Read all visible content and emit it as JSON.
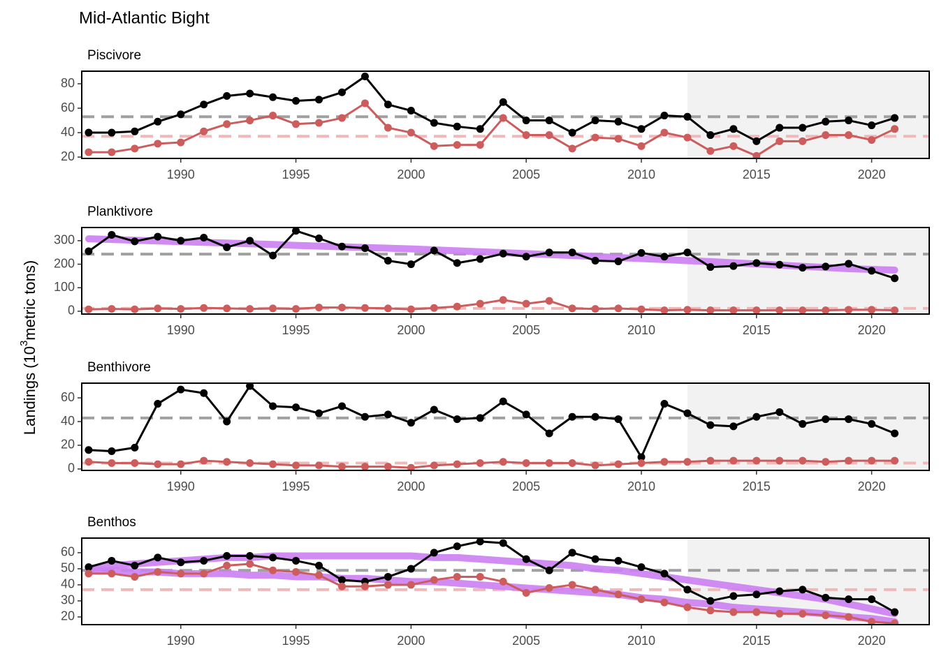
{
  "title": "Mid-Atlantic Bight",
  "ylabel": [
    "Landings (10",
    "3",
    "metric tons)"
  ],
  "chart_data": [
    {
      "type": "line",
      "title": "Piscivore",
      "x": [
        1986,
        1987,
        1988,
        1989,
        1990,
        1991,
        1992,
        1993,
        1994,
        1995,
        1996,
        1997,
        1998,
        1999,
        2000,
        2001,
        2002,
        2003,
        2004,
        2005,
        2006,
        2007,
        2008,
        2009,
        2010,
        2011,
        2012,
        2013,
        2014,
        2015,
        2016,
        2017,
        2018,
        2019,
        2020,
        2021
      ],
      "series": [
        {
          "color": "#000000",
          "markers": true,
          "values": [
            40,
            40,
            41,
            49,
            55,
            63,
            70,
            72,
            69,
            66,
            67,
            73,
            86,
            63,
            58,
            48,
            45,
            43,
            65,
            50,
            50,
            40,
            50,
            49,
            43,
            54,
            53,
            38,
            43,
            33,
            44,
            44,
            49,
            50,
            46,
            52
          ]
        },
        {
          "color": "#cd5c5c",
          "markers": true,
          "values": [
            24,
            24,
            27,
            31,
            32,
            41,
            47,
            50,
            54,
            47,
            48,
            52,
            64,
            44,
            40,
            29,
            30,
            30,
            52,
            38,
            38,
            27,
            36,
            35,
            29,
            40,
            36,
            25,
            29,
            21,
            33,
            33,
            38,
            38,
            34,
            43
          ]
        }
      ],
      "hlines": [
        {
          "value": 53,
          "color": "#a0a0a0"
        },
        {
          "value": 37,
          "color": "#f0b8b8"
        }
      ],
      "shade_from": 2012,
      "xlim": [
        1985.7,
        2022.5
      ],
      "xticks": [
        1990,
        1995,
        2000,
        2005,
        2010,
        2015,
        2020
      ],
      "ylim": [
        18.9,
        90.3
      ],
      "yticks": [
        20,
        40,
        60,
        80
      ]
    },
    {
      "type": "line",
      "title": "Planktivore",
      "x": [
        1986,
        1987,
        1988,
        1989,
        1990,
        1991,
        1992,
        1993,
        1994,
        1995,
        1996,
        1997,
        1998,
        1999,
        2000,
        2001,
        2002,
        2003,
        2004,
        2005,
        2006,
        2007,
        2008,
        2009,
        2010,
        2011,
        2012,
        2013,
        2014,
        2015,
        2016,
        2017,
        2018,
        2019,
        2020,
        2021
      ],
      "series": [
        {
          "color": "#cc80f2",
          "markers": false,
          "values": [
            308,
            305,
            302,
            299,
            296,
            293,
            290,
            287,
            284,
            280,
            277,
            274,
            271,
            268,
            265,
            261,
            257,
            253,
            249,
            245,
            241,
            237,
            233,
            228,
            224,
            220,
            215,
            211,
            206,
            201,
            196,
            191,
            186,
            181,
            178,
            175
          ]
        },
        {
          "color": "#000000",
          "markers": true,
          "values": [
            255,
            325,
            297,
            317,
            300,
            313,
            272,
            300,
            237,
            342,
            310,
            275,
            268,
            215,
            200,
            258,
            205,
            222,
            245,
            232,
            250,
            250,
            215,
            212,
            248,
            232,
            250,
            188,
            192,
            205,
            198,
            185,
            190,
            202,
            172,
            140
          ]
        },
        {
          "color": "#cd5c5c",
          "markers": true,
          "values": [
            8,
            10,
            8,
            12,
            10,
            14,
            12,
            10,
            12,
            10,
            16,
            16,
            14,
            12,
            8,
            14,
            20,
            32,
            48,
            32,
            44,
            12,
            10,
            12,
            8,
            4,
            6,
            4,
            4,
            4,
            4,
            4,
            4,
            6,
            6,
            4
          ]
        }
      ],
      "hlines": [
        {
          "value": 243,
          "color": "#a0a0a0"
        },
        {
          "value": 12,
          "color": "#f0b8b8"
        }
      ],
      "shade_from": 2012,
      "xlim": [
        1985.7,
        2022.5
      ],
      "xticks": [
        1990,
        1995,
        2000,
        2005,
        2010,
        2015,
        2020
      ],
      "ylim": [
        -12,
        356
      ],
      "yticks": [
        0,
        100,
        200,
        300
      ]
    },
    {
      "type": "line",
      "title": "Benthivore",
      "x": [
        1986,
        1987,
        1988,
        1989,
        1990,
        1991,
        1992,
        1993,
        1994,
        1995,
        1996,
        1997,
        1998,
        1999,
        2000,
        2001,
        2002,
        2003,
        2004,
        2005,
        2006,
        2007,
        2008,
        2009,
        2010,
        2011,
        2012,
        2013,
        2014,
        2015,
        2016,
        2017,
        2018,
        2019,
        2020,
        2021
      ],
      "series": [
        {
          "color": "#000000",
          "markers": true,
          "values": [
            16,
            15,
            18,
            55,
            67,
            64,
            40,
            70,
            53,
            52,
            47,
            53,
            44,
            46,
            39,
            50,
            42,
            43,
            57,
            46,
            30,
            44,
            44,
            42,
            10,
            55,
            47,
            37,
            36,
            44,
            48,
            38,
            42,
            42,
            38,
            30
          ]
        },
        {
          "color": "#cd5c5c",
          "markers": true,
          "values": [
            6,
            5,
            5,
            4,
            4,
            7,
            6,
            5,
            4,
            3,
            3,
            2,
            2,
            2,
            1,
            3,
            4,
            5,
            6,
            5,
            5,
            5,
            3,
            4,
            5,
            6,
            6,
            7,
            7,
            7,
            7,
            7,
            6,
            7,
            7,
            7
          ]
        }
      ],
      "hlines": [
        {
          "value": 43,
          "color": "#a0a0a0"
        },
        {
          "value": 5,
          "color": "#f0b8b8"
        }
      ],
      "shade_from": 2012,
      "xlim": [
        1985.7,
        2022.5
      ],
      "xticks": [
        1990,
        1995,
        2000,
        2005,
        2010,
        2015,
        2020
      ],
      "ylim": [
        -1.2,
        72.4
      ],
      "yticks": [
        0,
        20,
        40,
        60
      ]
    },
    {
      "type": "line",
      "title": "Benthos",
      "x": [
        1986,
        1987,
        1988,
        1989,
        1990,
        1991,
        1992,
        1993,
        1994,
        1995,
        1996,
        1997,
        1998,
        1999,
        2000,
        2001,
        2002,
        2003,
        2004,
        2005,
        2006,
        2007,
        2008,
        2009,
        2010,
        2011,
        2012,
        2013,
        2014,
        2015,
        2016,
        2017,
        2018,
        2019,
        2020,
        2021
      ],
      "series": [
        {
          "color": "#cc80f2",
          "markers": false,
          "values": [
            50,
            52,
            53,
            54,
            55,
            56,
            57,
            57,
            58,
            58,
            58,
            58,
            58,
            58,
            58,
            57,
            57,
            56,
            55,
            54,
            53,
            52,
            50,
            49,
            47,
            45,
            43,
            41,
            39,
            37,
            35,
            33,
            31,
            28,
            25,
            22
          ]
        },
        {
          "color": "#cc80f2",
          "markers": false,
          "values": [
            49,
            49,
            48,
            48,
            47,
            47,
            47,
            46,
            46,
            45,
            45,
            44,
            44,
            43,
            42,
            42,
            41,
            40,
            39,
            38,
            37,
            36,
            35,
            34,
            32,
            31,
            29,
            28,
            26,
            25,
            24,
            23,
            22,
            20,
            19,
            17
          ]
        },
        {
          "color": "#000000",
          "markers": true,
          "values": [
            51,
            55,
            52,
            57,
            54,
            55,
            58,
            58,
            57,
            55,
            52,
            43,
            42,
            45,
            50,
            60,
            64,
            67,
            66,
            56,
            49,
            60,
            56,
            55,
            51,
            47,
            37,
            30,
            33,
            34,
            36,
            37,
            32,
            31,
            31,
            23
          ]
        },
        {
          "color": "#cd5c5c",
          "markers": true,
          "values": [
            47,
            47,
            45,
            48,
            47,
            47,
            52,
            53,
            49,
            48,
            46,
            39,
            39,
            40,
            40,
            43,
            45,
            45,
            42,
            35,
            38,
            40,
            37,
            34,
            31,
            29,
            26,
            24,
            23,
            23,
            22,
            22,
            21,
            20,
            17,
            16
          ]
        }
      ],
      "hlines": [
        {
          "value": 49,
          "color": "#a0a0a0"
        },
        {
          "value": 37,
          "color": "#f0b8b8"
        }
      ],
      "shade_from": 2012,
      "xlim": [
        1985.7,
        2022.5
      ],
      "xticks": [
        1990,
        1995,
        2000,
        2005,
        2010,
        2015,
        2020
      ],
      "ylim": [
        15.2,
        69.1
      ],
      "yticks": [
        20,
        30,
        40,
        50,
        60
      ]
    }
  ]
}
